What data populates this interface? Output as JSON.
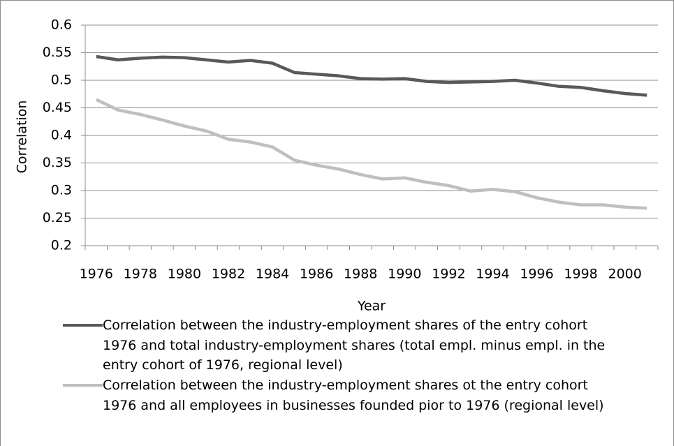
{
  "chart_data": {
    "type": "line",
    "x_label": "Year",
    "y_label": "Correlation",
    "categories": [
      "1976",
      null,
      "1978",
      null,
      "1980",
      null,
      "1982",
      null,
      "1984",
      null,
      "1986",
      null,
      "1988",
      null,
      "1990",
      null,
      "1992",
      null,
      "1994",
      null,
      "1996",
      null,
      "1998",
      null,
      "2000",
      null
    ],
    "ylim": [
      0.2,
      0.6
    ],
    "yticks": [
      0.2,
      0.25,
      0.3,
      0.35,
      0.4,
      0.45,
      0.5,
      0.55,
      0.6
    ],
    "grid": true,
    "legend": "bottom",
    "series": [
      {
        "name": "Correlation between the industry-employment shares of the entry cohort 1976 and total industry-employment shares (total empl. minus empl. in the entry cohort of 1976, regional level)",
        "color": "#595959",
        "values": [
          0.543,
          0.537,
          0.54,
          0.542,
          0.541,
          0.537,
          0.533,
          0.536,
          0.531,
          0.514,
          0.511,
          0.508,
          0.503,
          0.502,
          0.503,
          0.498,
          0.496,
          0.497,
          0.498,
          0.5,
          0.495,
          0.489,
          0.487,
          0.481,
          0.476,
          0.473
        ]
      },
      {
        "name": "Correlation between the industry-employment shares ot the entry cohort 1976 and all employees in businesses founded pior to 1976 (regional level)",
        "color": "#bfbfbf",
        "values": [
          0.465,
          0.446,
          0.438,
          0.428,
          0.417,
          0.408,
          0.393,
          0.388,
          0.379,
          0.355,
          0.346,
          0.339,
          0.329,
          0.321,
          0.323,
          0.315,
          0.309,
          0.299,
          0.302,
          0.298,
          0.287,
          0.279,
          0.274,
          0.274,
          0.27,
          0.268
        ]
      }
    ]
  }
}
